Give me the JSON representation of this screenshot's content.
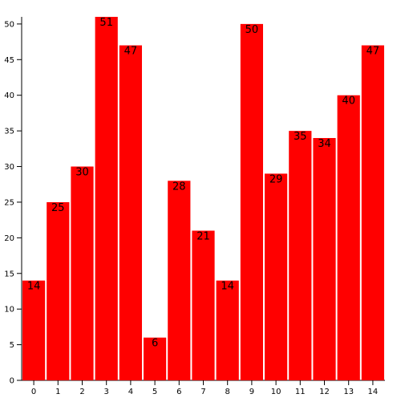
{
  "chart_data": {
    "type": "bar",
    "categories": [
      "0",
      "1",
      "2",
      "3",
      "4",
      "5",
      "6",
      "7",
      "8",
      "9",
      "10",
      "11",
      "12",
      "13",
      "14"
    ],
    "values": [
      14,
      25,
      30,
      51,
      47,
      6,
      28,
      21,
      14,
      50,
      29,
      35,
      34,
      40,
      47
    ],
    "color": "#ff0000",
    "ylim": [
      0,
      51
    ],
    "yticks": [
      0,
      5,
      10,
      15,
      20,
      25,
      30,
      35,
      40,
      45,
      50
    ]
  }
}
